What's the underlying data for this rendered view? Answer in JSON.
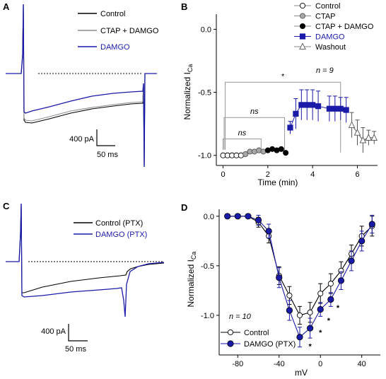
{
  "panels": {
    "a": "A",
    "b": "B",
    "c": "C",
    "d": "D"
  },
  "chart_data": [
    {
      "panel": "A",
      "type": "line",
      "legend": [
        {
          "name": "Control",
          "color": "#000000"
        },
        {
          "name": "CTAP + DAMGO",
          "color": "#8c8c8c"
        },
        {
          "name": "DAMGO",
          "color": "#1a1aa8"
        }
      ],
      "scalebar": {
        "y_label": "400 pA",
        "x_label": "50 ms"
      }
    },
    {
      "panel": "B",
      "type": "scatter",
      "xlabel": "Time (min)",
      "ylabel": "Normalized I",
      "ylabel_sub": "Ca",
      "xlim": [
        -0.3,
        6.9
      ],
      "ylim": [
        -1.08,
        0.12
      ],
      "xticks": [
        0,
        2,
        4,
        6
      ],
      "yticks": [
        0.0,
        -0.5,
        -1.0
      ],
      "xtick_labels": [
        "0",
        "2",
        "4",
        "6"
      ],
      "ytick_labels": [
        "0.0",
        "-0.5",
        "-1.0"
      ],
      "n_label": "n = 9",
      "legend": [
        {
          "name": "Control",
          "color": "#888888",
          "marker": "circle-open"
        },
        {
          "name": "CTAP",
          "color": "#999999",
          "marker": "circle-gray"
        },
        {
          "name": "CTAP + DAMGO",
          "color": "#000000",
          "marker": "circle-black"
        },
        {
          "name": "DAMGO",
          "color": "#1a1aa8",
          "marker": "square-blue"
        },
        {
          "name": "Washout",
          "color": "#666666",
          "marker": "triangle-open"
        }
      ],
      "series": [
        {
          "name": "Control",
          "marker": "circle-open",
          "x": [
            0.0,
            0.2,
            0.4,
            0.6,
            0.8
          ],
          "y": [
            -1.0,
            -1.0,
            -1.0,
            -1.0,
            -1.0
          ]
        },
        {
          "name": "CTAP",
          "marker": "circle-gray",
          "x": [
            1.0,
            1.2,
            1.4,
            1.6,
            1.8
          ],
          "y": [
            -0.99,
            -0.97,
            -0.97,
            -0.96,
            -0.97
          ]
        },
        {
          "name": "CTAP + DAMGO",
          "marker": "circle-black",
          "x": [
            2.0,
            2.2,
            2.4,
            2.6,
            2.8
          ],
          "y": [
            -0.96,
            -0.95,
            -0.96,
            -0.95,
            -0.98
          ]
        },
        {
          "name": "DAMGO",
          "marker": "square-blue",
          "x": [
            3.0,
            3.25,
            3.5,
            3.75,
            4.0,
            4.25,
            4.75,
            5.0,
            5.25,
            5.5
          ],
          "y": [
            -0.78,
            -0.67,
            -0.6,
            -0.6,
            -0.6,
            -0.61,
            -0.63,
            -0.63,
            -0.63,
            -0.64
          ],
          "err": [
            0.05,
            0.12,
            0.12,
            0.12,
            0.12,
            0.12,
            0.1,
            0.1,
            0.09,
            0.1
          ]
        },
        {
          "name": "Washout",
          "marker": "triangle-open",
          "x": [
            5.75,
            6.0,
            6.25,
            6.5,
            6.75
          ],
          "y": [
            -0.76,
            -0.82,
            -0.88,
            -0.86,
            -0.86
          ],
          "err": [
            0.1,
            0.1,
            0.1,
            0.06,
            0.05
          ]
        }
      ],
      "brackets": [
        {
          "label": "ns",
          "x_from": 0.0,
          "x_to": 1.7,
          "y": -0.87,
          "italic": true
        },
        {
          "label": "ns",
          "x_from": 0.0,
          "x_to": 2.75,
          "y": -0.7,
          "italic": true
        },
        {
          "label": "*",
          "x_from": 0.0,
          "x_to": 5.25,
          "y": -0.42,
          "italic": false
        }
      ]
    },
    {
      "panel": "C",
      "type": "line",
      "legend": [
        {
          "name": "Control (PTX)",
          "color": "#000000"
        },
        {
          "name": "DAMGO (PTX)",
          "color": "#1a1aa8"
        }
      ],
      "scalebar": {
        "y_label": "400 pA",
        "x_label": "50 ms"
      }
    },
    {
      "panel": "D",
      "type": "line",
      "xlabel": "mV",
      "ylabel": "Normalized I",
      "ylabel_sub": "Ca",
      "xlim": [
        -98,
        58
      ],
      "ylim": [
        -1.4,
        0.07
      ],
      "xticks": [
        -80,
        -40,
        0,
        40
      ],
      "yticks": [
        0.0,
        -0.5,
        -1.0
      ],
      "xtick_labels": [
        "-80",
        "-40",
        "0",
        "40"
      ],
      "ytick_labels": [
        "0.0",
        "-0.5",
        "-1.0"
      ],
      "n_label": "n = 10",
      "legend": [
        {
          "name": "Control",
          "color": "#000000",
          "marker": "circle-open"
        },
        {
          "name": "DAMGO (PTX)",
          "color": "#1a1aa8",
          "marker": "circle-blue"
        }
      ],
      "series": [
        {
          "name": "Control",
          "marker": "circle-open",
          "x": [
            -90,
            -80,
            -70,
            -60,
            -50,
            -40,
            -30,
            -20,
            -10,
            0,
            10,
            20,
            30,
            40,
            50
          ],
          "y": [
            0.0,
            0.0,
            0.0,
            -0.06,
            -0.2,
            -0.6,
            -0.8,
            -1.0,
            -0.97,
            -0.78,
            -0.68,
            -0.55,
            -0.38,
            -0.2,
            -0.1
          ],
          "err": [
            0,
            0,
            0,
            0.05,
            0.07,
            0.09,
            0.09,
            0.09,
            0.1,
            0.1,
            0.1,
            0.09,
            0.09,
            0.1,
            0.1
          ]
        },
        {
          "name": "DAMGO (PTX)",
          "marker": "circle-blue",
          "x": [
            -90,
            -80,
            -70,
            -60,
            -50,
            -40,
            -30,
            -20,
            -10,
            0,
            10,
            20,
            30,
            40,
            50
          ],
          "y": [
            0.0,
            0.0,
            0.0,
            -0.04,
            -0.15,
            -0.62,
            -0.95,
            -1.22,
            -1.13,
            -0.94,
            -0.84,
            -0.65,
            -0.45,
            -0.25,
            -0.08
          ],
          "err": [
            0,
            0,
            0,
            0.05,
            0.07,
            0.1,
            0.1,
            0.1,
            0.1,
            0.07,
            0.07,
            0.09,
            0.1,
            0.1,
            0.09
          ]
        }
      ],
      "annotations": [
        {
          "text": "*",
          "x": -10,
          "y": -1.34
        },
        {
          "text": "*",
          "x": 0,
          "y": -1.2
        },
        {
          "text": "*",
          "x": 8,
          "y": -1.08
        },
        {
          "text": "*",
          "x": 17,
          "y": -0.95
        }
      ]
    }
  ]
}
